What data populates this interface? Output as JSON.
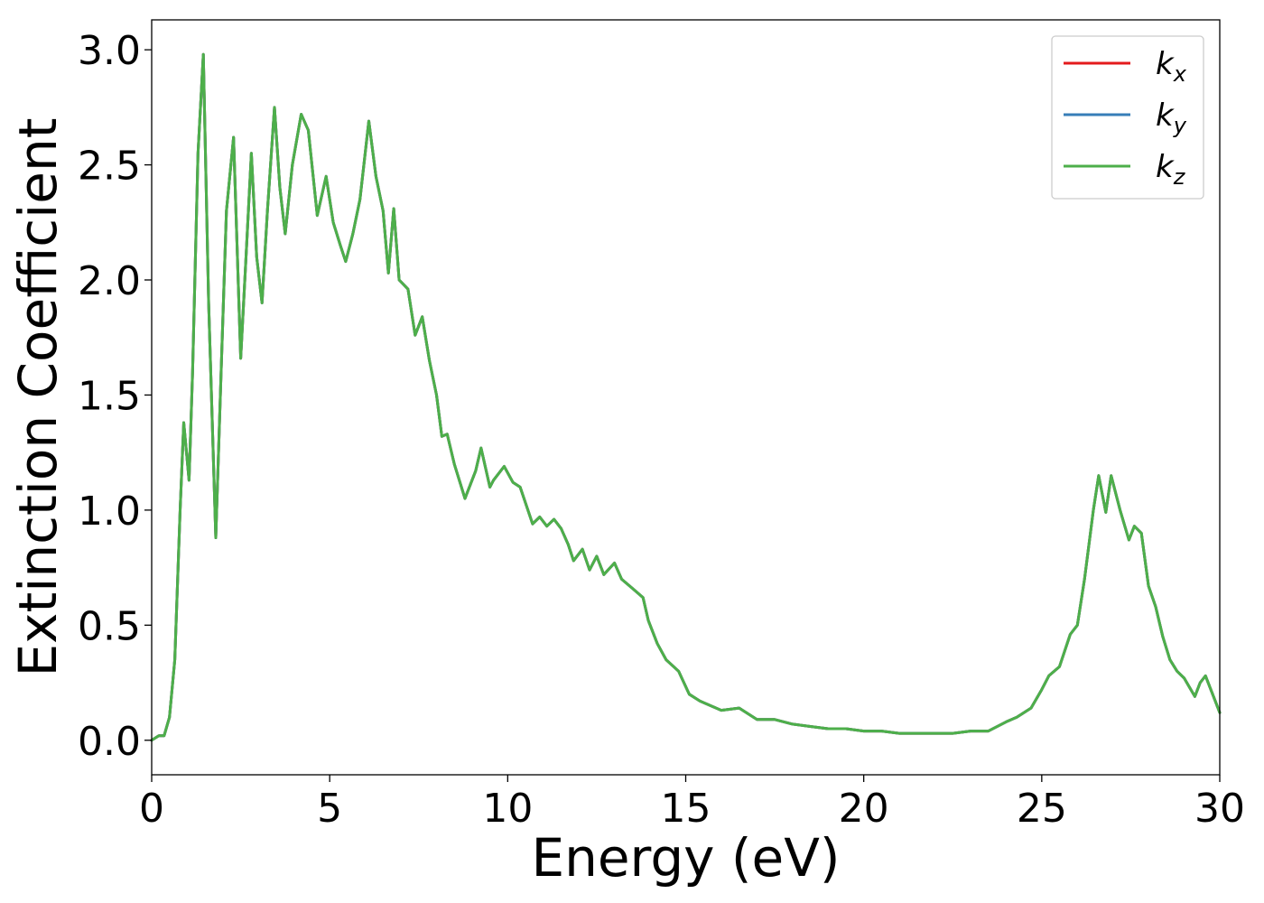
{
  "chart_data": {
    "type": "line",
    "title": "",
    "xlabel": "Energy (eV)",
    "ylabel": "Extinction Coefficient",
    "xlim": [
      0,
      30
    ],
    "ylim": [
      -0.15,
      3.13
    ],
    "xticks": [
      "0",
      "5",
      "10",
      "15",
      "20",
      "25",
      "30"
    ],
    "yticks": [
      "0.0",
      "0.5",
      "1.0",
      "1.5",
      "2.0",
      "2.5",
      "3.0"
    ],
    "grid": false,
    "legend_position": "top-right",
    "x": [
      0,
      0.2,
      0.35,
      0.5,
      0.65,
      0.8,
      0.9,
      1.05,
      1.15,
      1.3,
      1.45,
      1.6,
      1.8,
      1.95,
      2.1,
      2.3,
      2.5,
      2.65,
      2.8,
      2.95,
      3.1,
      3.25,
      3.45,
      3.6,
      3.75,
      3.95,
      4.2,
      4.4,
      4.65,
      4.9,
      5.1,
      5.3,
      5.45,
      5.65,
      5.85,
      6.1,
      6.3,
      6.5,
      6.65,
      6.8,
      6.95,
      7.2,
      7.4,
      7.6,
      7.8,
      8.0,
      8.15,
      8.3,
      8.5,
      8.8,
      9.1,
      9.25,
      9.5,
      9.6,
      9.9,
      10.15,
      10.35,
      10.7,
      10.9,
      11.1,
      11.3,
      11.5,
      11.7,
      11.85,
      12.1,
      12.3,
      12.5,
      12.7,
      13.0,
      13.2,
      13.5,
      13.8,
      13.95,
      14.2,
      14.45,
      14.8,
      15.1,
      15.4,
      15.7,
      16.0,
      16.5,
      17.0,
      17.5,
      18.0,
      18.5,
      19.0,
      19.5,
      20.0,
      20.5,
      21.0,
      21.5,
      22.0,
      22.5,
      23.0,
      23.5,
      24.0,
      24.3,
      24.7,
      25.0,
      25.2,
      25.5,
      25.8,
      26.0,
      26.2,
      26.45,
      26.6,
      26.8,
      26.95,
      27.2,
      27.45,
      27.6,
      27.8,
      28.0,
      28.2,
      28.4,
      28.6,
      28.8,
      29.0,
      29.3,
      29.45,
      29.6,
      29.8,
      30.0
    ],
    "series": [
      {
        "name": "k_x",
        "color": "#e41a1c",
        "values": [
          0.0,
          0.02,
          0.02,
          0.1,
          0.35,
          1.0,
          1.38,
          1.13,
          1.6,
          2.55,
          2.98,
          1.9,
          0.88,
          1.6,
          2.3,
          2.62,
          1.66,
          2.1,
          2.55,
          2.1,
          1.9,
          2.3,
          2.75,
          2.4,
          2.2,
          2.5,
          2.72,
          2.65,
          2.28,
          2.45,
          2.25,
          2.15,
          2.08,
          2.2,
          2.35,
          2.69,
          2.45,
          2.3,
          2.03,
          2.31,
          2.0,
          1.96,
          1.76,
          1.84,
          1.65,
          1.5,
          1.32,
          1.33,
          1.2,
          1.05,
          1.17,
          1.27,
          1.1,
          1.13,
          1.19,
          1.12,
          1.1,
          0.94,
          0.97,
          0.93,
          0.96,
          0.92,
          0.85,
          0.78,
          0.83,
          0.74,
          0.8,
          0.72,
          0.77,
          0.7,
          0.66,
          0.62,
          0.52,
          0.42,
          0.35,
          0.3,
          0.2,
          0.17,
          0.15,
          0.13,
          0.14,
          0.09,
          0.09,
          0.07,
          0.06,
          0.05,
          0.05,
          0.04,
          0.04,
          0.03,
          0.03,
          0.03,
          0.03,
          0.04,
          0.04,
          0.08,
          0.1,
          0.14,
          0.22,
          0.28,
          0.32,
          0.46,
          0.5,
          0.7,
          1.0,
          1.15,
          0.99,
          1.15,
          1.0,
          0.87,
          0.93,
          0.9,
          0.67,
          0.58,
          0.45,
          0.35,
          0.3,
          0.27,
          0.19,
          0.25,
          0.28,
          0.2,
          0.12
        ]
      },
      {
        "name": "k_y",
        "color": "#377eb8",
        "values": [
          0.0,
          0.02,
          0.02,
          0.1,
          0.35,
          1.0,
          1.38,
          1.13,
          1.6,
          2.55,
          2.98,
          1.9,
          0.88,
          1.6,
          2.3,
          2.62,
          1.66,
          2.1,
          2.55,
          2.1,
          1.9,
          2.3,
          2.75,
          2.4,
          2.2,
          2.5,
          2.72,
          2.65,
          2.28,
          2.45,
          2.25,
          2.15,
          2.08,
          2.2,
          2.35,
          2.69,
          2.45,
          2.3,
          2.03,
          2.31,
          2.0,
          1.96,
          1.76,
          1.84,
          1.65,
          1.5,
          1.32,
          1.33,
          1.2,
          1.05,
          1.17,
          1.27,
          1.1,
          1.13,
          1.19,
          1.12,
          1.1,
          0.94,
          0.97,
          0.93,
          0.96,
          0.92,
          0.85,
          0.78,
          0.83,
          0.74,
          0.8,
          0.72,
          0.77,
          0.7,
          0.66,
          0.62,
          0.52,
          0.42,
          0.35,
          0.3,
          0.2,
          0.17,
          0.15,
          0.13,
          0.14,
          0.09,
          0.09,
          0.07,
          0.06,
          0.05,
          0.05,
          0.04,
          0.04,
          0.03,
          0.03,
          0.03,
          0.03,
          0.04,
          0.04,
          0.08,
          0.1,
          0.14,
          0.22,
          0.28,
          0.32,
          0.46,
          0.5,
          0.7,
          1.0,
          1.15,
          0.99,
          1.15,
          1.0,
          0.87,
          0.93,
          0.9,
          0.67,
          0.58,
          0.45,
          0.35,
          0.3,
          0.27,
          0.19,
          0.25,
          0.28,
          0.2,
          0.12
        ]
      },
      {
        "name": "k_z",
        "color": "#4daf4a",
        "values": [
          0.0,
          0.02,
          0.02,
          0.1,
          0.35,
          1.0,
          1.38,
          1.13,
          1.6,
          2.55,
          2.98,
          1.9,
          0.88,
          1.6,
          2.3,
          2.62,
          1.66,
          2.1,
          2.55,
          2.1,
          1.9,
          2.3,
          2.75,
          2.4,
          2.2,
          2.5,
          2.72,
          2.65,
          2.28,
          2.45,
          2.25,
          2.15,
          2.08,
          2.2,
          2.35,
          2.69,
          2.45,
          2.3,
          2.03,
          2.31,
          2.0,
          1.96,
          1.76,
          1.84,
          1.65,
          1.5,
          1.32,
          1.33,
          1.2,
          1.05,
          1.17,
          1.27,
          1.1,
          1.13,
          1.19,
          1.12,
          1.1,
          0.94,
          0.97,
          0.93,
          0.96,
          0.92,
          0.85,
          0.78,
          0.83,
          0.74,
          0.8,
          0.72,
          0.77,
          0.7,
          0.66,
          0.62,
          0.52,
          0.42,
          0.35,
          0.3,
          0.2,
          0.17,
          0.15,
          0.13,
          0.14,
          0.09,
          0.09,
          0.07,
          0.06,
          0.05,
          0.05,
          0.04,
          0.04,
          0.03,
          0.03,
          0.03,
          0.03,
          0.04,
          0.04,
          0.08,
          0.1,
          0.14,
          0.22,
          0.28,
          0.32,
          0.46,
          0.5,
          0.7,
          1.0,
          1.15,
          0.99,
          1.15,
          1.0,
          0.87,
          0.93,
          0.9,
          0.67,
          0.58,
          0.45,
          0.35,
          0.3,
          0.27,
          0.19,
          0.25,
          0.28,
          0.2,
          0.12
        ]
      }
    ],
    "legend": [
      {
        "base": "k",
        "sub": "x",
        "color": "#e41a1c"
      },
      {
        "base": "k",
        "sub": "y",
        "color": "#377eb8"
      },
      {
        "base": "k",
        "sub": "z",
        "color": "#4daf4a"
      }
    ]
  }
}
